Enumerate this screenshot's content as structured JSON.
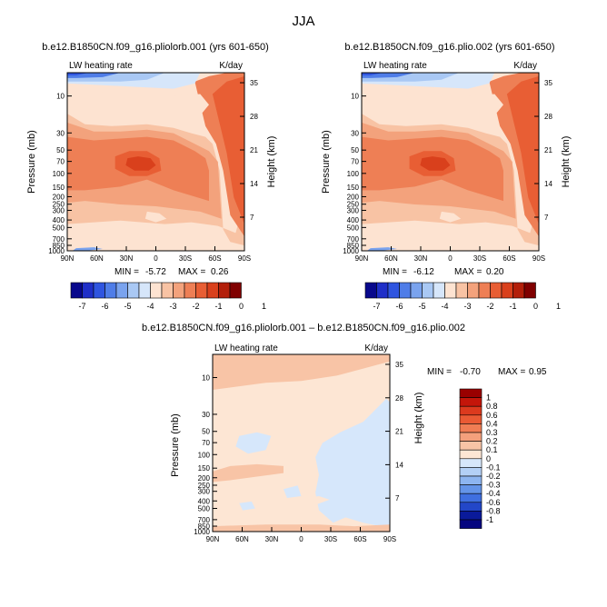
{
  "figure": {
    "title": "JJA"
  },
  "chart_data": [
    {
      "type": "heatmap",
      "title": "b.e12.B1850CN.f09_g16.pliolorb.001 (yrs 601-650)",
      "left_label": "LW heating rate",
      "units": "K/day",
      "ylabel": "Pressure (mb)",
      "ylabel_right": "Height (km)",
      "xlabel": "",
      "x_ticks": [
        "90N",
        "60N",
        "30N",
        "0",
        "30S",
        "60S",
        "90S"
      ],
      "p_ticks": [
        10,
        30,
        50,
        70,
        100,
        150,
        200,
        250,
        300,
        400,
        500,
        700,
        850,
        1000
      ],
      "height_ticks": [
        7,
        14,
        21,
        28,
        35
      ],
      "ylim": [
        1000,
        5
      ],
      "min_label": "MIN =",
      "max_label": "MAX =",
      "min_value": "-5.72",
      "max_value": "0.26",
      "colorbar_labels": [
        "-7",
        "-6",
        "-5",
        "-4",
        "-3",
        "-2",
        "-1",
        "0",
        "1"
      ],
      "colors": [
        "#08088c",
        "#1f2fc8",
        "#2f55e0",
        "#4f7de8",
        "#7aa3ee",
        "#a9c8f4",
        "#d6e6fa",
        "#fde3d1",
        "#f8c3a4",
        "#f3a27c",
        "#ee7f55",
        "#e85e34",
        "#d9401c",
        "#b31f0a",
        "#800000"
      ]
    },
    {
      "type": "heatmap",
      "title": "b.e12.B1850CN.f09_g16.plio.002 (yrs 601-650)",
      "left_label": "LW heating rate",
      "units": "K/day",
      "ylabel": "Pressure (mb)",
      "ylabel_right": "Height (km)",
      "xlabel": "",
      "x_ticks": [
        "90N",
        "60N",
        "30N",
        "0",
        "30S",
        "60S",
        "90S"
      ],
      "p_ticks": [
        10,
        30,
        50,
        70,
        100,
        150,
        200,
        250,
        300,
        400,
        500,
        700,
        850,
        1000
      ],
      "height_ticks": [
        7,
        14,
        21,
        28,
        35
      ],
      "ylim": [
        1000,
        5
      ],
      "min_label": "MIN =",
      "max_label": "MAX =",
      "min_value": "-6.12",
      "max_value": "0.20",
      "colorbar_labels": [
        "-7",
        "-6",
        "-5",
        "-4",
        "-3",
        "-2",
        "-1",
        "0",
        "1"
      ],
      "colors": [
        "#08088c",
        "#1f2fc8",
        "#2f55e0",
        "#4f7de8",
        "#7aa3ee",
        "#a9c8f4",
        "#d6e6fa",
        "#fde3d1",
        "#f8c3a4",
        "#f3a27c",
        "#ee7f55",
        "#e85e34",
        "#d9401c",
        "#b31f0a",
        "#800000"
      ]
    },
    {
      "type": "heatmap",
      "title": "b.e12.B1850CN.f09_g16.pliolorb.001 – b.e12.B1850CN.f09_g16.plio.002",
      "left_label": "LW heating rate",
      "units": "K/day",
      "ylabel": "Pressure (mb)",
      "ylabel_right": "Height (km)",
      "xlabel": "",
      "x_ticks": [
        "90N",
        "60N",
        "30N",
        "0",
        "30S",
        "60S",
        "90S"
      ],
      "p_ticks": [
        10,
        30,
        50,
        70,
        100,
        150,
        200,
        250,
        300,
        400,
        500,
        700,
        850,
        1000
      ],
      "height_ticks": [
        7,
        14,
        21,
        28,
        35
      ],
      "ylim": [
        1000,
        5
      ],
      "min_label": "MIN =",
      "max_label": "MAX =",
      "min_value": "-0.70",
      "max_value": "0.95",
      "colorbar_labels": [
        "1",
        "0.8",
        "0.6",
        "0.4",
        "0.3",
        "0.2",
        "0.1",
        "0",
        "-0.1",
        "-0.2",
        "-0.3",
        "-0.4",
        "-0.6",
        "-0.8",
        "-1"
      ],
      "colors": [
        "#9a0000",
        "#c4160a",
        "#dc3a1e",
        "#ea5a34",
        "#f07d54",
        "#f4a07c",
        "#f8c4a6",
        "#fde6d4",
        "#d6e7fb",
        "#b3d0f6",
        "#8db5f0",
        "#6494e8",
        "#3f6fe0",
        "#2347c8",
        "#0a1a9a",
        "#050580"
      ]
    }
  ]
}
